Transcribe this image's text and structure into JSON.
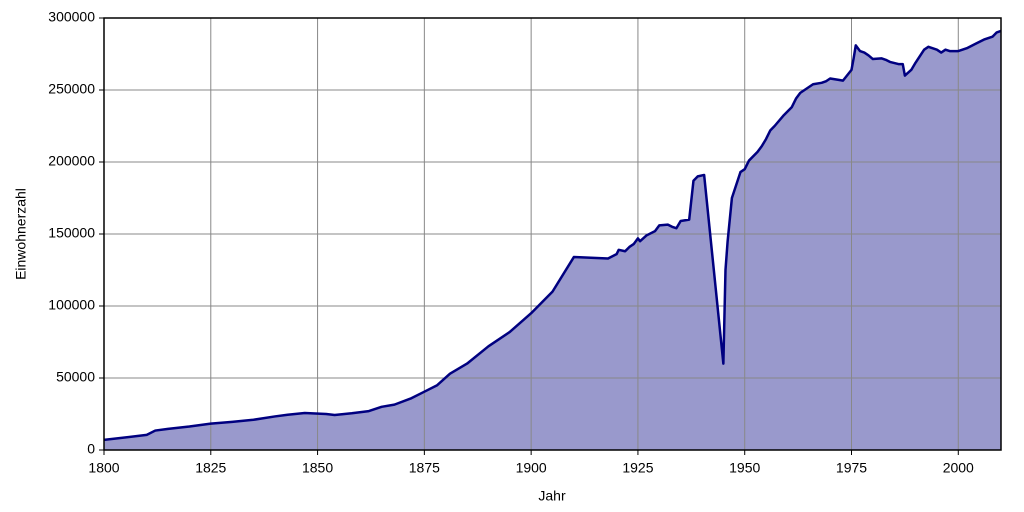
{
  "chart_data": {
    "type": "area",
    "x_label": "Jahr",
    "y_label": "Einwohnerzahl",
    "x": [
      1800,
      1810,
      1812,
      1815,
      1820,
      1825,
      1830,
      1835,
      1840,
      1843,
      1847,
      1852,
      1854,
      1858,
      1862,
      1865,
      1868,
      1872,
      1875,
      1878,
      1881,
      1885,
      1890,
      1895,
      1900,
      1905,
      1910,
      1918,
      1920,
      1920.5,
      1922,
      1923,
      1924,
      1925,
      1925.5,
      1927,
      1929,
      1930,
      1932,
      1933,
      1934,
      1935,
      1937,
      1938,
      1939,
      1940.5,
      1945,
      1945.5,
      1946,
      1947,
      1949,
      1950,
      1951,
      1953,
      1954,
      1955,
      1956,
      1957,
      1959,
      1961,
      1962,
      1963,
      1965,
      1966,
      1968,
      1969,
      1970,
      1972,
      1973,
      1975,
      1975.5,
      1976,
      1977,
      1978,
      1979,
      1980,
      1982,
      1983,
      1984,
      1986,
      1987,
      1987.5,
      1989,
      1990,
      1992,
      1993,
      1995,
      1996,
      1997,
      1998,
      2000,
      2002,
      2004,
      2006,
      2008,
      2009,
      2010
    ],
    "values": [
      7000,
      10500,
      13500,
      14700,
      16300,
      18300,
      19500,
      21000,
      23300,
      24500,
      25700,
      25000,
      24300,
      25500,
      27000,
      30000,
      31500,
      36000,
      40500,
      45000,
      53000,
      60000,
      72000,
      82000,
      95000,
      110000,
      134000,
      133000,
      136000,
      139000,
      138000,
      141000,
      143000,
      147000,
      145000,
      149000,
      152000,
      156000,
      156500,
      155000,
      154000,
      159000,
      160000,
      187000,
      190000,
      191000,
      60000,
      125000,
      145000,
      175000,
      193000,
      195000,
      201000,
      207000,
      211000,
      216000,
      222000,
      225000,
      232000,
      238000,
      244000,
      248000,
      252000,
      254000,
      255000,
      256000,
      258000,
      257000,
      256500,
      264000,
      272000,
      281000,
      277000,
      276000,
      274000,
      271500,
      272000,
      271000,
      269500,
      268000,
      268000,
      260000,
      264000,
      269000,
      278000,
      280000,
      278000,
      276000,
      278000,
      277000,
      277000,
      279000,
      282000,
      285000,
      287000,
      290000,
      291000
    ],
    "line_color": "#000080",
    "fill_color": "#9999cc",
    "xlim": [
      1800,
      2010
    ],
    "xticks": [
      1800,
      1825,
      1850,
      1875,
      1900,
      1925,
      1950,
      1975,
      2000
    ],
    "ylim": [
      0,
      300000
    ],
    "yticks": [
      0,
      50000,
      100000,
      150000,
      200000,
      250000,
      300000
    ],
    "grid": true
  }
}
